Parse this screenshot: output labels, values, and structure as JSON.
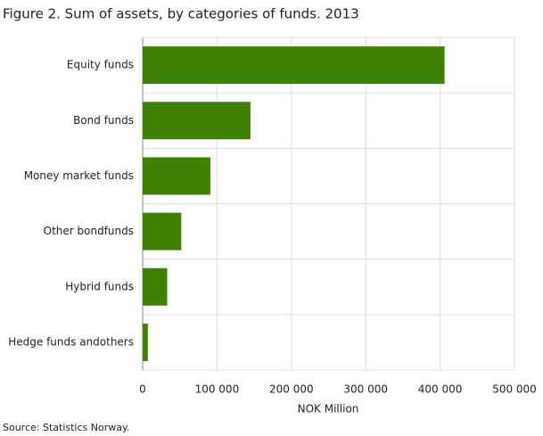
{
  "chart_data": {
    "type": "bar",
    "orientation": "horizontal",
    "title": "Figure 2. Sum of assets, by categories of funds. 2013",
    "categories": [
      "Equity funds",
      "Bond funds",
      "Money market funds",
      "Other bondfunds",
      "Hybrid funds",
      "Hedge funds andothers"
    ],
    "values": [
      406000,
      145000,
      91000,
      52000,
      33000,
      7000
    ],
    "color": "#3f8104",
    "xlim": [
      0,
      500000
    ],
    "xticks": [
      0,
      {
        "value": 100000,
        "label": "100 000"
      },
      {
        "value": 200000,
        "label": "200 000"
      },
      {
        "value": 300000,
        "label": "300 000"
      },
      {
        "value": 400000,
        "label": "400 000"
      },
      {
        "value": 500000,
        "label": "500 000"
      }
    ],
    "xlabel": "NOK Million",
    "source": "Source: Statistics Norway.",
    "grid": true
  }
}
